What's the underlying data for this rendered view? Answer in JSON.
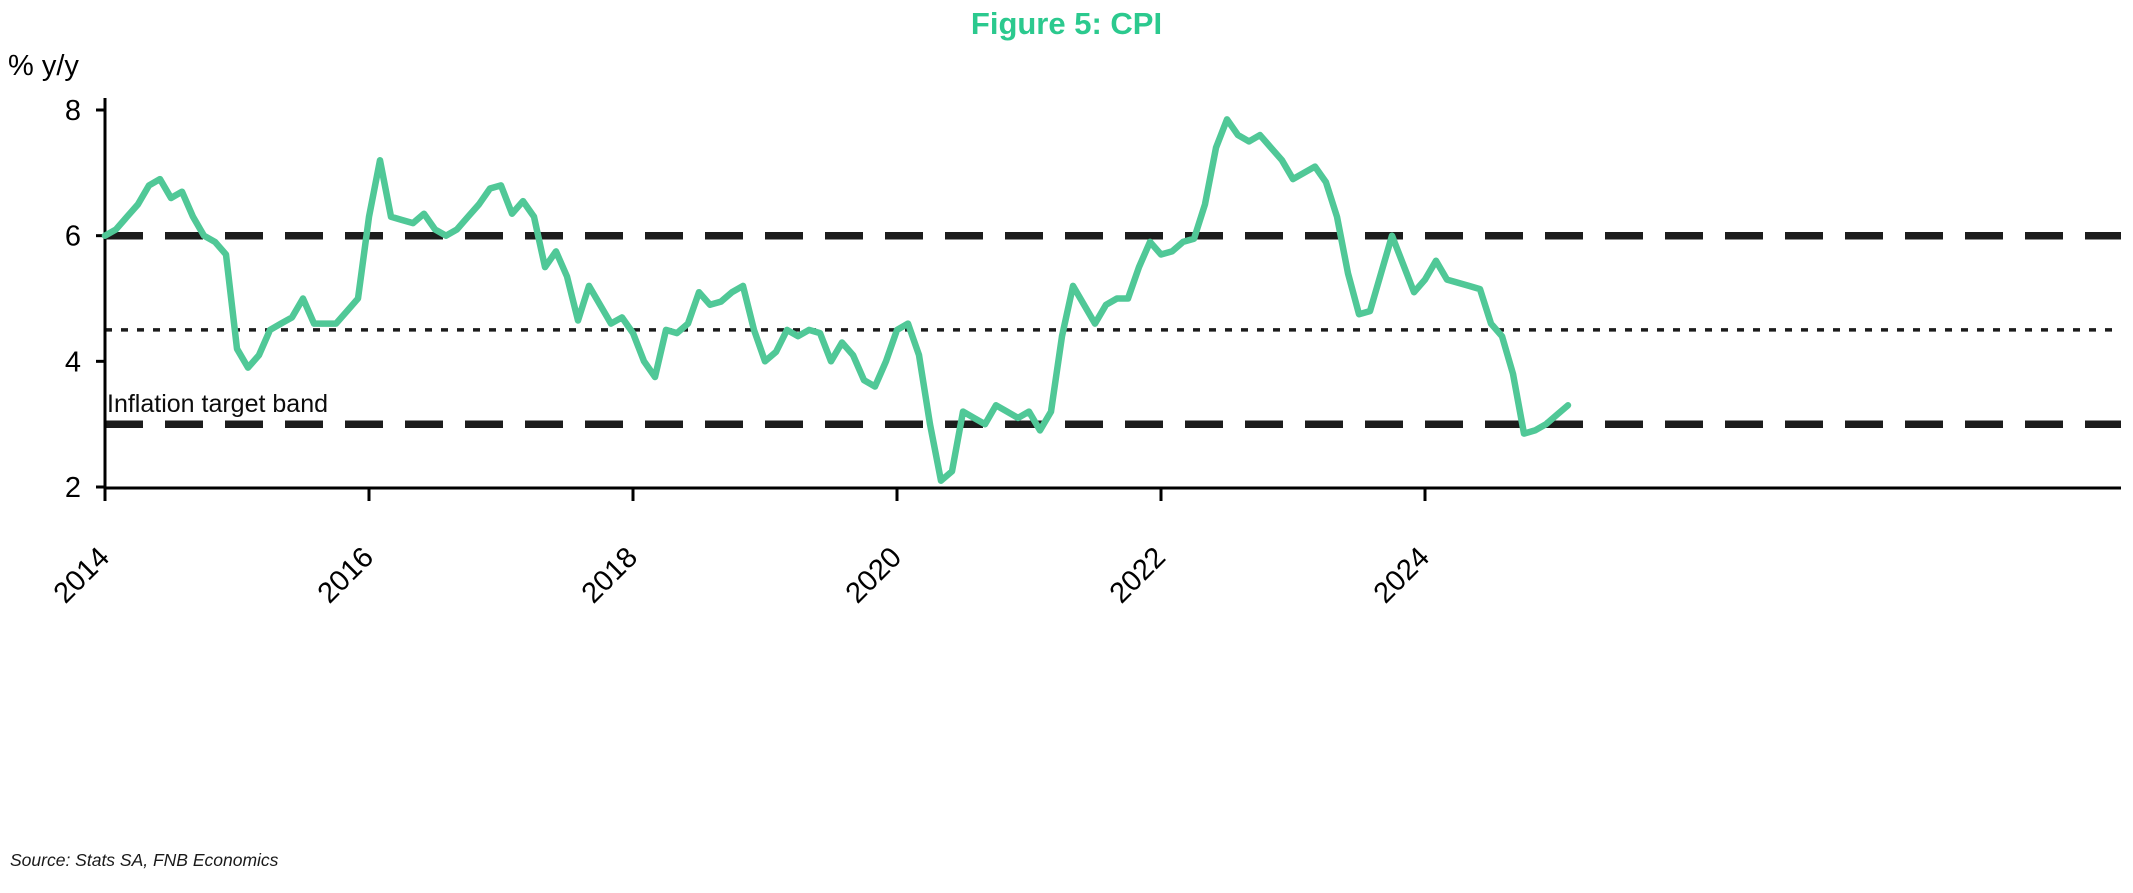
{
  "title": "Figure 5: CPI",
  "y_axis_unit": "% y/y",
  "annotation_label": "Inflation target band",
  "source_note": "Source: Stats SA, FNB Economics",
  "colors": {
    "title_accent": "#2bc98e",
    "line": "#50c897",
    "reference": "#1c1c1c",
    "axis": "#000000",
    "background": "#ffffff"
  },
  "chart_data": {
    "type": "line",
    "title": "Figure 5: CPI",
    "ylabel": "% y/y",
    "xlabel": "",
    "ylim": [
      2,
      8
    ],
    "yticks": [
      8,
      6,
      4,
      2
    ],
    "xticks": [
      2014,
      2016,
      2018,
      2020,
      2022,
      2024
    ],
    "x_range": [
      2014.0,
      2025.1667
    ],
    "x_frequency": "monthly",
    "grid": false,
    "legend": "none",
    "reference_lines": [
      {
        "label": "Inflation target band upper",
        "value": 6.0,
        "style": "dashed-thick"
      },
      {
        "label": "Inflation target band midpoint",
        "value": 4.5,
        "style": "dotted"
      },
      {
        "label": "Inflation target band lower",
        "value": 3.0,
        "style": "dashed-thick"
      }
    ],
    "series": [
      {
        "name": "CPI % y/y",
        "start": "2014-01",
        "end": "2025-02",
        "values": [
          6.0,
          6.1,
          6.3,
          6.5,
          6.8,
          6.9,
          6.6,
          6.7,
          6.3,
          6.0,
          5.9,
          5.7,
          4.2,
          3.9,
          4.1,
          4.5,
          4.6,
          4.7,
          5.0,
          4.6,
          4.6,
          4.6,
          4.8,
          5.0,
          6.3,
          7.2,
          6.3,
          6.25,
          6.2,
          6.35,
          6.1,
          6.0,
          6.1,
          6.3,
          6.5,
          6.75,
          6.8,
          6.35,
          6.55,
          6.3,
          5.5,
          5.75,
          5.35,
          4.65,
          5.2,
          4.9,
          4.6,
          4.7,
          4.45,
          4.0,
          3.75,
          4.5,
          4.45,
          4.6,
          5.1,
          4.9,
          4.95,
          5.1,
          5.2,
          4.5,
          4.0,
          4.15,
          4.5,
          4.4,
          4.5,
          4.45,
          4.0,
          4.3,
          4.1,
          3.7,
          3.6,
          4.0,
          4.5,
          4.6,
          4.1,
          3.0,
          2.1,
          2.25,
          3.2,
          3.1,
          3.0,
          3.3,
          3.2,
          3.1,
          3.2,
          2.9,
          3.2,
          4.4,
          5.2,
          4.9,
          4.6,
          4.9,
          5.0,
          5.0,
          5.5,
          5.9,
          5.7,
          5.75,
          5.9,
          5.95,
          6.5,
          7.4,
          7.85,
          7.6,
          7.5,
          7.6,
          7.4,
          7.2,
          6.9,
          7.0,
          7.1,
          6.85,
          6.3,
          5.4,
          4.75,
          4.8,
          5.4,
          6.0,
          5.55,
          5.1,
          5.3,
          5.6,
          5.3,
          5.25,
          5.2,
          5.15,
          4.6,
          4.4,
          3.8,
          2.85,
          2.9,
          3.0,
          3.15,
          3.3
        ]
      }
    ]
  }
}
